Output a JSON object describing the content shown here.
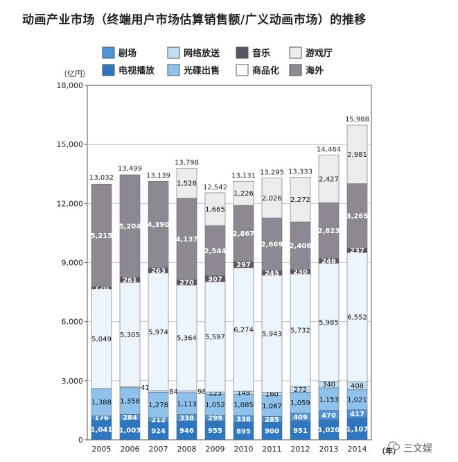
{
  "chart_data": {
    "type": "stacked-bar",
    "title": "动画产业市场（终端用户市场估算销售额/广义动画市场）的推移",
    "unit_label": "（亿円）",
    "x_unit_label": "（年）",
    "ylim": [
      0,
      18000
    ],
    "yticks": [
      0,
      3000,
      6000,
      9000,
      12000,
      15000,
      18000
    ],
    "ytick_labels": [
      "0",
      "3,000",
      "6,000",
      "9,000",
      "12,000",
      "15,000",
      "18,000"
    ],
    "categories": [
      "2005",
      "2006",
      "2007",
      "2008",
      "2009",
      "2010",
      "2011",
      "2012",
      "2013",
      "2014"
    ],
    "series": [
      {
        "name": "电视播放",
        "color": "#2f76c0",
        "label_color": "#ffffff",
        "values": [
          1041,
          1003,
          924,
          946,
          955,
          895,
          900,
          951,
          1020,
          1107
        ],
        "labels": [
          "1,041",
          "1,003",
          "924",
          "946",
          "955",
          "895",
          "900",
          "951",
          "1,020",
          "1,107"
        ]
      },
      {
        "name": "剧场",
        "color": "#4d94d6",
        "label_color": "#ffffff",
        "values": [
          176,
          284,
          212,
          338,
          299,
          338,
          285,
          409,
          470,
          417
        ],
        "labels": [
          "176",
          "284",
          "212",
          "338",
          "299",
          "338",
          "285",
          "409",
          "470",
          "417"
        ]
      },
      {
        "name": "光碟出售",
        "color": "#8ec2ec",
        "label_color": "#111111",
        "values": [
          1388,
          1358,
          1278,
          1113,
          1052,
          1085,
          1067,
          1059,
          1153,
          1021
        ],
        "labels": [
          "1,388",
          "1,358",
          "1,278",
          "1,113",
          "1,052",
          "1,085",
          "1,067",
          "1,059",
          "1,153",
          "1,021"
        ]
      },
      {
        "name": "网络放送",
        "color": "#c2def4",
        "label_color": "#111111",
        "values": [
          0,
          41,
          84,
          98,
          123,
          149,
          160,
          272,
          340,
          408
        ],
        "labels": [
          "",
          "41",
          "84",
          "98",
          "123",
          "149",
          "160",
          "272",
          "340",
          "408"
        ]
      },
      {
        "name": "商品化",
        "color": "#edf5fc",
        "label_color": "#111111",
        "values": [
          5049,
          5305,
          5974,
          5364,
          5597,
          6274,
          5943,
          5732,
          5985,
          6552
        ],
        "labels": [
          "5,049",
          "5,305",
          "5,974",
          "5,364",
          "5,597",
          "6,274",
          "5,943",
          "5,732",
          "5,985",
          "6,552"
        ]
      },
      {
        "name": "音乐",
        "color": "#5a5560",
        "label_color": "#ffffff",
        "values": [
          120,
          261,
          263,
          270,
          307,
          297,
          245,
          230,
          246,
          237
        ],
        "labels": [
          "120",
          "261",
          "263",
          "270",
          "307",
          "297",
          "245",
          "230",
          "246",
          "237"
        ]
      },
      {
        "name": "海外",
        "color": "#8d8891",
        "label_color": "#ffffff",
        "values": [
          5215,
          5204,
          4390,
          4137,
          2544,
          2867,
          2669,
          2408,
          2823,
          3265
        ],
        "labels": [
          "5,215",
          "5,204",
          "4,390",
          "4,137",
          "2,544",
          "2,867",
          "2,669",
          "2,408",
          "2,823",
          "3,265"
        ]
      },
      {
        "name": "游戏厅",
        "color": "#ececec",
        "label_color": "#111111",
        "values": [
          0,
          0,
          0,
          1528,
          1665,
          1226,
          2026,
          2272,
          2427,
          2981
        ],
        "labels": [
          "",
          "",
          "",
          "1,528",
          "1,665",
          "1,226",
          "2,026",
          "2,272",
          "2,427",
          "2,981"
        ]
      }
    ],
    "totals": [
      13032,
      13499,
      13139,
      13798,
      12542,
      13131,
      13295,
      13333,
      14464,
      15988
    ],
    "total_labels": [
      "13,032",
      "13,499",
      "13,139",
      "13,798",
      "12,542",
      "13,131",
      "13,295",
      "13,333",
      "14,464",
      "15,988"
    ],
    "legend": [
      {
        "name": "剧场",
        "color": "#4d94d6"
      },
      {
        "name": "网络放送",
        "color": "#c2def4"
      },
      {
        "name": "音乐",
        "color": "#5a5560"
      },
      {
        "name": "游戏厅",
        "color": "#ececec"
      },
      {
        "name": "电视播放",
        "color": "#2f76c0"
      },
      {
        "name": "光碟出售",
        "color": "#8ec2ec"
      },
      {
        "name": "商品化",
        "color": "#ffffff"
      },
      {
        "name": "海外",
        "color": "#8d8891"
      }
    ]
  },
  "watermark": "三文娱",
  "watermark_icon": "wechat-icon"
}
